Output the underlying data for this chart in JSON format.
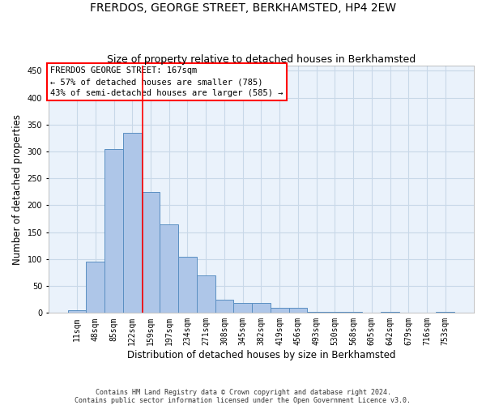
{
  "title": "FRERDOS, GEORGE STREET, BERKHAMSTED, HP4 2EW",
  "subtitle": "Size of property relative to detached houses in Berkhamsted",
  "xlabel": "Distribution of detached houses by size in Berkhamsted",
  "ylabel": "Number of detached properties",
  "footer_line1": "Contains HM Land Registry data © Crown copyright and database right 2024.",
  "footer_line2": "Contains public sector information licensed under the Open Government Licence v3.0.",
  "bar_labels": [
    "11sqm",
    "48sqm",
    "85sqm",
    "122sqm",
    "159sqm",
    "197sqm",
    "234sqm",
    "271sqm",
    "308sqm",
    "345sqm",
    "382sqm",
    "419sqm",
    "456sqm",
    "493sqm",
    "530sqm",
    "568sqm",
    "605sqm",
    "642sqm",
    "679sqm",
    "716sqm",
    "753sqm"
  ],
  "bar_values": [
    5,
    95,
    305,
    335,
    225,
    165,
    105,
    70,
    25,
    18,
    18,
    10,
    10,
    2,
    2,
    2,
    0,
    2,
    0,
    0,
    2
  ],
  "bar_color": "#aec6e8",
  "bar_edge_color": "#5a8fc2",
  "grid_color": "#c8d8e8",
  "background_color": "#eaf2fb",
  "annotation_text": "FRERDOS GEORGE STREET: 167sqm\n← 57% of detached houses are smaller (785)\n43% of semi-detached houses are larger (585) →",
  "annotation_box_color": "white",
  "annotation_box_edge_color": "red",
  "vline_x": 3.55,
  "vline_color": "red",
  "ylim": [
    0,
    460
  ],
  "yticks": [
    0,
    50,
    100,
    150,
    200,
    250,
    300,
    350,
    400,
    450
  ],
  "title_fontsize": 10,
  "subtitle_fontsize": 9,
  "xlabel_fontsize": 8.5,
  "ylabel_fontsize": 8.5,
  "tick_fontsize": 7,
  "annotation_fontsize": 7.5,
  "fig_width": 6.0,
  "fig_height": 5.0,
  "dpi": 100
}
